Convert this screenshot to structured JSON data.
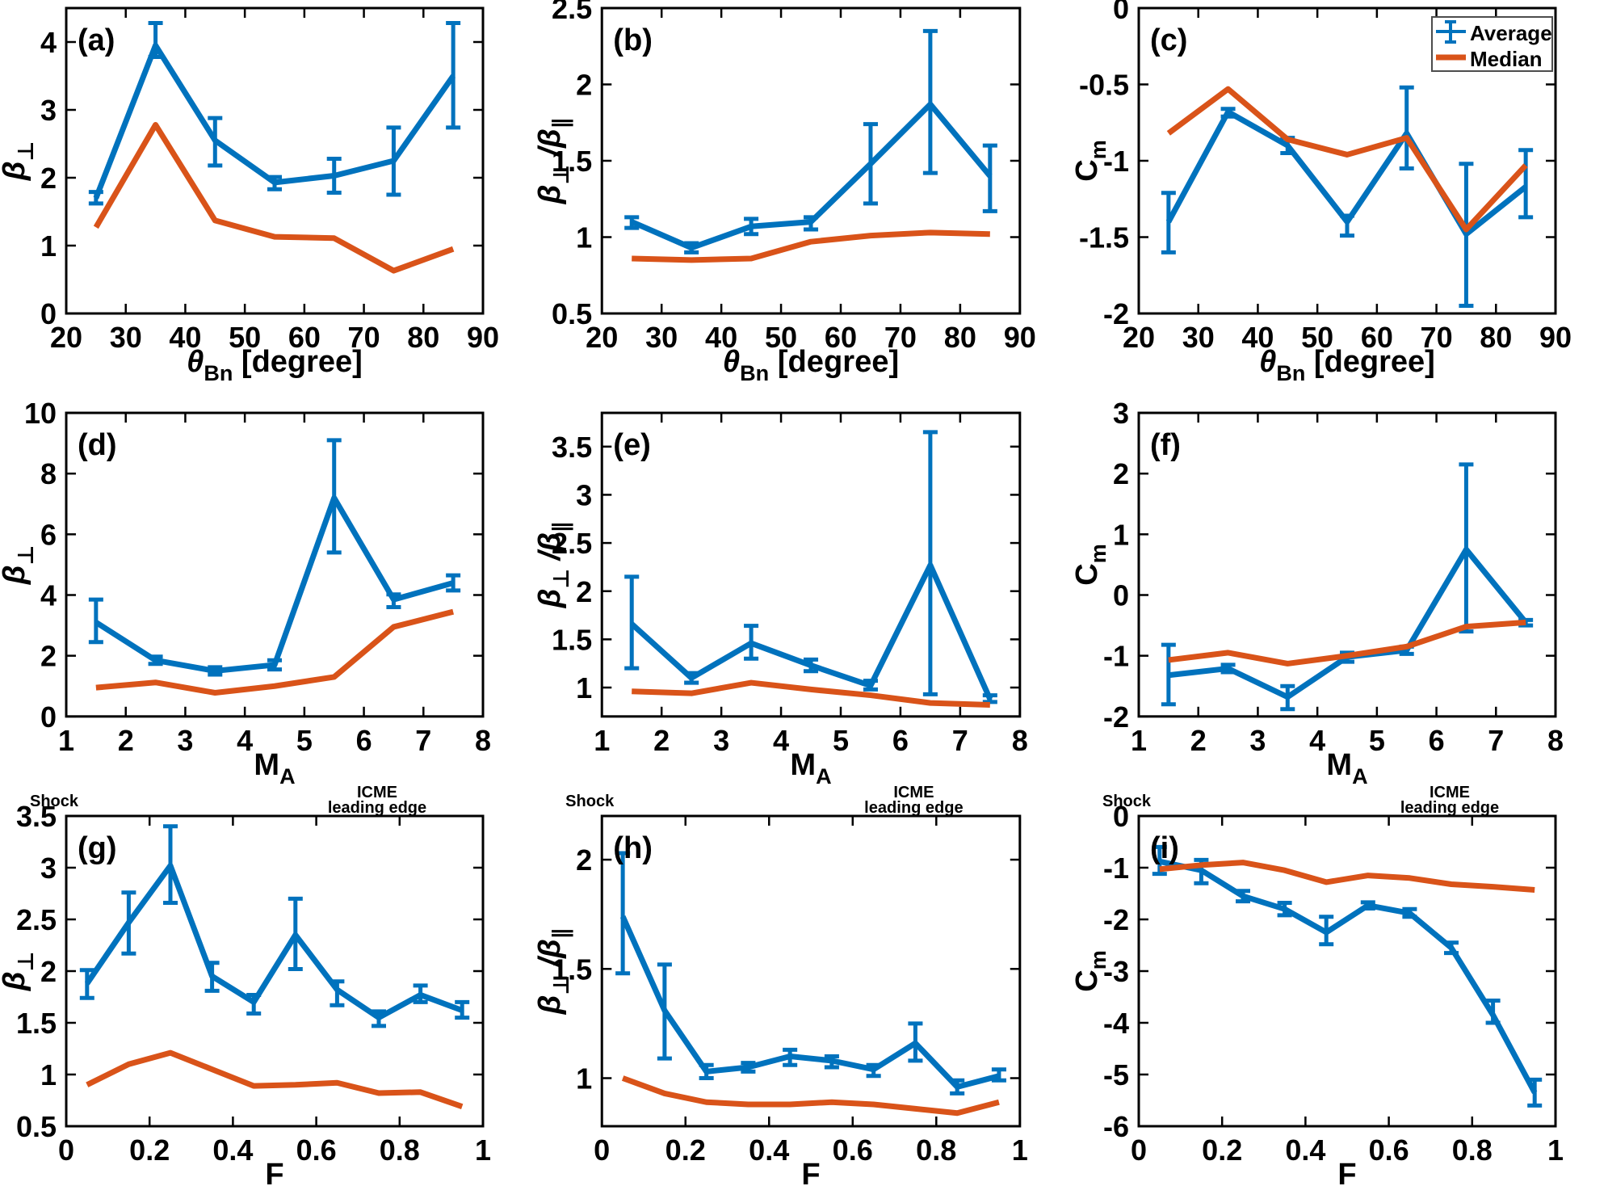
{
  "figure": {
    "background": "#ffffff",
    "colors": {
      "average": "#0072BD",
      "median": "#D95319",
      "axes": "#000000",
      "text": "#000000",
      "legend_border": "#4d4d4d"
    },
    "legend": {
      "average_label": "Average",
      "median_label": "Median",
      "position": "top-right of panel (c)"
    },
    "grid": "off"
  },
  "chart_data": [
    {
      "id": "a",
      "panel": "(a)",
      "type": "line",
      "xlabel": [
        {
          "t": "θ",
          "i": true
        },
        {
          "t": "Bn",
          "sub": true
        },
        {
          "t": " [degree]"
        }
      ],
      "ylabel": [
        {
          "t": "β",
          "i": true
        },
        {
          "t": "⊥",
          "sub": true
        }
      ],
      "xlim": [
        20,
        90
      ],
      "xticks": [
        20,
        30,
        40,
        50,
        60,
        70,
        80,
        90
      ],
      "ylim": [
        0,
        4.5
      ],
      "yticks": [
        0,
        1,
        2,
        3,
        4
      ],
      "x": [
        25,
        35,
        45,
        55,
        65,
        75,
        85
      ],
      "series": [
        {
          "name": "Average",
          "color_key": "average",
          "y": [
            1.7,
            3.95,
            2.55,
            1.93,
            2.03,
            2.25,
            3.5
          ],
          "err_lo": [
            1.62,
            3.78,
            2.18,
            1.83,
            1.78,
            1.75,
            2.74
          ],
          "err_hi": [
            1.79,
            4.28,
            2.88,
            2.01,
            2.28,
            2.74,
            4.28
          ]
        },
        {
          "name": "Median",
          "color_key": "median",
          "y": [
            1.27,
            2.78,
            1.37,
            1.13,
            1.11,
            0.63,
            0.95
          ]
        }
      ],
      "legend": false,
      "top_left_label": null,
      "top_right_label_lines": null
    },
    {
      "id": "b",
      "panel": "(b)",
      "type": "line",
      "xlabel": [
        {
          "t": "θ",
          "i": true
        },
        {
          "t": "Bn",
          "sub": true
        },
        {
          "t": " [degree]"
        }
      ],
      "ylabel": [
        {
          "t": "β",
          "i": true
        },
        {
          "t": "⊥",
          "sub": true
        },
        {
          "t": " /",
          "i": true
        },
        {
          "t": "β",
          "i": true
        },
        {
          "t": "∥",
          "sub": true
        }
      ],
      "xlim": [
        20,
        90
      ],
      "xticks": [
        20,
        30,
        40,
        50,
        60,
        70,
        80,
        90
      ],
      "ylim": [
        0.5,
        2.5
      ],
      "yticks": [
        0.5,
        1,
        1.5,
        2,
        2.5
      ],
      "x": [
        25,
        35,
        45,
        55,
        65,
        75,
        85
      ],
      "series": [
        {
          "name": "Average",
          "color_key": "average",
          "y": [
            1.1,
            0.93,
            1.07,
            1.1,
            1.48,
            1.87,
            1.4
          ],
          "err_lo": [
            1.06,
            0.9,
            1.02,
            1.05,
            1.22,
            1.42,
            1.17
          ],
          "err_hi": [
            1.13,
            0.96,
            1.12,
            1.13,
            1.74,
            2.35,
            1.6
          ]
        },
        {
          "name": "Median",
          "color_key": "median",
          "y": [
            0.86,
            0.85,
            0.86,
            0.97,
            1.01,
            1.03,
            1.02
          ]
        }
      ],
      "legend": false,
      "top_left_label": null,
      "top_right_label_lines": null
    },
    {
      "id": "c",
      "panel": "(c)",
      "type": "line",
      "xlabel": [
        {
          "t": "θ",
          "i": true
        },
        {
          "t": "Bn",
          "sub": true
        },
        {
          "t": " [degree]"
        }
      ],
      "ylabel": [
        {
          "t": "C"
        },
        {
          "t": "m",
          "sub": true
        }
      ],
      "xlim": [
        20,
        90
      ],
      "xticks": [
        20,
        30,
        40,
        50,
        60,
        70,
        80,
        90
      ],
      "ylim": [
        -2,
        0
      ],
      "yticks": [
        -2,
        -1.5,
        -1,
        -0.5,
        0
      ],
      "x": [
        25,
        35,
        45,
        55,
        65,
        75,
        85
      ],
      "series": [
        {
          "name": "Average",
          "color_key": "average",
          "y": [
            -1.4,
            -0.68,
            -0.9,
            -1.4,
            -0.82,
            -1.48,
            -1.17
          ],
          "err_lo": [
            -1.6,
            -0.71,
            -0.95,
            -1.49,
            -1.05,
            -1.95,
            -1.37
          ],
          "err_hi": [
            -1.21,
            -0.66,
            -0.85,
            -1.36,
            -0.52,
            -1.02,
            -0.93
          ]
        },
        {
          "name": "Median",
          "color_key": "median",
          "y": [
            -0.82,
            -0.53,
            -0.86,
            -0.96,
            -0.85,
            -1.45,
            -1.03
          ]
        }
      ],
      "legend": true,
      "top_left_label": null,
      "top_right_label_lines": null
    },
    {
      "id": "d",
      "panel": "(d)",
      "type": "line",
      "xlabel": [
        {
          "t": "M"
        },
        {
          "t": "A",
          "sub": true
        }
      ],
      "ylabel": [
        {
          "t": "β",
          "i": true
        },
        {
          "t": "⊥",
          "sub": true
        }
      ],
      "xlim": [
        1,
        8
      ],
      "xticks": [
        1,
        2,
        3,
        4,
        5,
        6,
        7,
        8
      ],
      "ylim": [
        0,
        10
      ],
      "yticks": [
        0,
        2,
        4,
        6,
        8,
        10
      ],
      "x": [
        1.5,
        2.5,
        3.5,
        4.5,
        5.5,
        6.5,
        7.5
      ],
      "series": [
        {
          "name": "Average",
          "color_key": "average",
          "y": [
            3.1,
            1.85,
            1.5,
            1.7,
            7.2,
            3.85,
            4.4
          ],
          "err_lo": [
            2.45,
            1.73,
            1.38,
            1.55,
            5.4,
            3.6,
            4.15
          ],
          "err_hi": [
            3.85,
            1.97,
            1.62,
            1.85,
            9.1,
            4.02,
            4.65
          ]
        },
        {
          "name": "Median",
          "color_key": "median",
          "y": [
            0.95,
            1.12,
            0.78,
            1.0,
            1.3,
            2.95,
            3.45
          ]
        }
      ],
      "legend": false,
      "top_left_label": null,
      "top_right_label_lines": null
    },
    {
      "id": "e",
      "panel": "(e)",
      "type": "line",
      "xlabel": [
        {
          "t": "M"
        },
        {
          "t": "A",
          "sub": true
        }
      ],
      "ylabel": [
        {
          "t": "β",
          "i": true
        },
        {
          "t": "⊥",
          "sub": true
        },
        {
          "t": " /",
          "i": true
        },
        {
          "t": "β",
          "i": true
        },
        {
          "t": "∥",
          "sub": true
        }
      ],
      "xlim": [
        1,
        8
      ],
      "xticks": [
        1,
        2,
        3,
        4,
        5,
        6,
        7,
        8
      ],
      "ylim": [
        0.7,
        3.85
      ],
      "yticks": [
        1,
        1.5,
        2,
        2.5,
        3,
        3.5
      ],
      "x": [
        1.5,
        2.5,
        3.5,
        4.5,
        5.5,
        6.5,
        7.5
      ],
      "series": [
        {
          "name": "Average",
          "color_key": "average",
          "y": [
            1.66,
            1.1,
            1.46,
            1.23,
            1.02,
            2.27,
            0.88
          ],
          "err_lo": [
            1.2,
            1.05,
            1.3,
            1.17,
            0.98,
            0.93,
            0.85
          ],
          "err_hi": [
            2.15,
            1.15,
            1.64,
            1.29,
            1.07,
            3.65,
            0.92
          ]
        },
        {
          "name": "Median",
          "color_key": "median",
          "y": [
            0.96,
            0.94,
            1.05,
            0.98,
            0.92,
            0.84,
            0.82
          ]
        }
      ],
      "legend": false,
      "top_left_label": null,
      "top_right_label_lines": null
    },
    {
      "id": "f",
      "panel": "(f)",
      "type": "line",
      "xlabel": [
        {
          "t": "M"
        },
        {
          "t": "A",
          "sub": true
        }
      ],
      "ylabel": [
        {
          "t": "C"
        },
        {
          "t": "m",
          "sub": true
        }
      ],
      "xlim": [
        1,
        8
      ],
      "xticks": [
        1,
        2,
        3,
        4,
        5,
        6,
        7,
        8
      ],
      "ylim": [
        -2,
        3
      ],
      "yticks": [
        -2,
        -1,
        0,
        1,
        2,
        3
      ],
      "x": [
        1.5,
        2.5,
        3.5,
        4.5,
        5.5,
        6.5,
        7.5
      ],
      "series": [
        {
          "name": "Average",
          "color_key": "average",
          "y": [
            -1.32,
            -1.21,
            -1.68,
            -1.02,
            -0.91,
            0.75,
            -0.45
          ],
          "err_lo": [
            -1.8,
            -1.27,
            -1.88,
            -1.1,
            -0.97,
            -0.6,
            -0.5
          ],
          "err_hi": [
            -0.82,
            -1.15,
            -1.5,
            -0.95,
            -0.85,
            2.15,
            -0.41
          ]
        },
        {
          "name": "Median",
          "color_key": "median",
          "y": [
            -1.07,
            -0.95,
            -1.13,
            -1.0,
            -0.85,
            -0.52,
            -0.45
          ]
        }
      ],
      "legend": false,
      "top_left_label": null,
      "top_right_label_lines": null
    },
    {
      "id": "g",
      "panel": "(g)",
      "type": "line",
      "xlabel": [
        {
          "t": "F"
        }
      ],
      "ylabel": [
        {
          "t": "β",
          "i": true
        },
        {
          "t": "⊥",
          "sub": true
        }
      ],
      "xlim": [
        0,
        1
      ],
      "xticks": [
        0,
        0.2,
        0.4,
        0.6,
        0.8,
        1
      ],
      "ylim": [
        0.5,
        3.5
      ],
      "yticks": [
        0.5,
        1,
        1.5,
        2,
        2.5,
        3,
        3.5
      ],
      "x": [
        0.05,
        0.15,
        0.25,
        0.35,
        0.45,
        0.55,
        0.65,
        0.75,
        0.85,
        0.95
      ],
      "series": [
        {
          "name": "Average",
          "color_key": "average",
          "y": [
            1.88,
            2.47,
            3.02,
            1.95,
            1.7,
            2.35,
            1.82,
            1.55,
            1.77,
            1.62
          ],
          "err_lo": [
            1.74,
            2.17,
            2.66,
            1.81,
            1.59,
            2.02,
            1.67,
            1.47,
            1.7,
            1.55
          ],
          "err_hi": [
            2.01,
            2.76,
            3.4,
            2.08,
            1.77,
            2.7,
            1.9,
            1.61,
            1.86,
            1.7
          ]
        },
        {
          "name": "Median",
          "color_key": "median",
          "y": [
            0.9,
            1.1,
            1.21,
            1.05,
            0.89,
            0.9,
            0.92,
            0.82,
            0.83,
            0.69
          ]
        }
      ],
      "legend": false,
      "top_left_label": "Shock",
      "top_right_label_lines": [
        "ICME",
        "leading edge"
      ]
    },
    {
      "id": "h",
      "panel": "(h)",
      "type": "line",
      "xlabel": [
        {
          "t": "F"
        }
      ],
      "ylabel": [
        {
          "t": "β",
          "i": true
        },
        {
          "t": "⊥",
          "sub": true
        },
        {
          "t": " /",
          "i": true
        },
        {
          "t": "β",
          "i": true
        },
        {
          "t": "∥",
          "sub": true
        }
      ],
      "xlim": [
        0,
        1
      ],
      "xticks": [
        0,
        0.2,
        0.4,
        0.6,
        0.8,
        1
      ],
      "ylim": [
        0.78,
        2.2
      ],
      "yticks": [
        1,
        1.5,
        2
      ],
      "x": [
        0.05,
        0.15,
        0.25,
        0.35,
        0.45,
        0.55,
        0.65,
        0.75,
        0.85,
        0.95
      ],
      "series": [
        {
          "name": "Average",
          "color_key": "average",
          "y": [
            1.74,
            1.31,
            1.03,
            1.05,
            1.1,
            1.08,
            1.04,
            1.16,
            0.96,
            1.01
          ],
          "err_lo": [
            1.48,
            1.09,
            1.0,
            1.03,
            1.06,
            1.05,
            1.01,
            1.08,
            0.93,
            0.99
          ],
          "err_hi": [
            2.03,
            1.52,
            1.06,
            1.07,
            1.13,
            1.1,
            1.06,
            1.25,
            0.99,
            1.04
          ]
        },
        {
          "name": "Median",
          "color_key": "median",
          "y": [
            1.0,
            0.93,
            0.89,
            0.88,
            0.88,
            0.89,
            0.88,
            0.86,
            0.84,
            0.89
          ]
        }
      ],
      "legend": false,
      "top_left_label": "Shock",
      "top_right_label_lines": [
        "ICME",
        "leading edge"
      ]
    },
    {
      "id": "i",
      "panel": "(i)",
      "type": "line",
      "xlabel": [
        {
          "t": "F"
        }
      ],
      "ylabel": [
        {
          "t": "C"
        },
        {
          "t": "m",
          "sub": true
        }
      ],
      "xlim": [
        0,
        1
      ],
      "xticks": [
        0,
        0.2,
        0.4,
        0.6,
        0.8,
        1
      ],
      "ylim": [
        -6,
        0
      ],
      "yticks": [
        -6,
        -5,
        -4,
        -3,
        -2,
        -1,
        0
      ],
      "x": [
        0.05,
        0.15,
        0.25,
        0.35,
        0.45,
        0.55,
        0.65,
        0.75,
        0.85,
        0.95
      ],
      "series": [
        {
          "name": "Average",
          "color_key": "average",
          "y": [
            -0.88,
            -1.05,
            -1.55,
            -1.8,
            -2.25,
            -1.73,
            -1.88,
            -2.55,
            -3.85,
            -5.35
          ],
          "err_lo": [
            -1.12,
            -1.3,
            -1.65,
            -1.92,
            -2.48,
            -1.79,
            -1.95,
            -2.65,
            -4.0,
            -5.6
          ],
          "err_hi": [
            -0.6,
            -0.85,
            -1.45,
            -1.68,
            -1.95,
            -1.67,
            -1.8,
            -2.45,
            -3.57,
            -5.1
          ]
        },
        {
          "name": "Median",
          "color_key": "median",
          "y": [
            -1.03,
            -0.95,
            -0.9,
            -1.05,
            -1.28,
            -1.15,
            -1.2,
            -1.32,
            -1.37,
            -1.43
          ]
        }
      ],
      "legend": false,
      "top_left_label": "Shock",
      "top_right_label_lines": [
        "ICME",
        "leading edge"
      ]
    }
  ]
}
